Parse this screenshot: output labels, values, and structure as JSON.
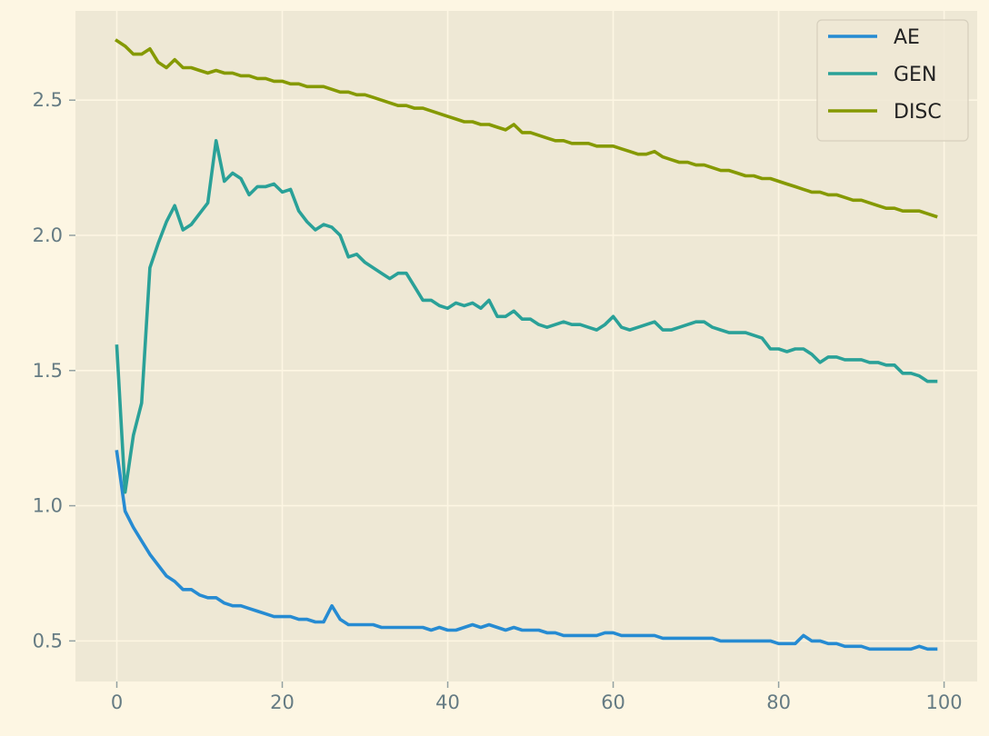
{
  "chart_data": {
    "type": "line",
    "title": "",
    "xlabel": "",
    "ylabel": "",
    "xlim": [
      -5,
      104
    ],
    "ylim": [
      0.35,
      2.83
    ],
    "x_ticks": [
      0,
      20,
      40,
      60,
      80,
      100
    ],
    "y_ticks": [
      0.5,
      1.0,
      1.5,
      2.0,
      2.5
    ],
    "x_tick_labels": [
      "0",
      "20",
      "40",
      "60",
      "80",
      "100"
    ],
    "y_tick_labels": [
      "0.5",
      "1.0",
      "1.5",
      "2.0",
      "2.5"
    ],
    "grid": true,
    "legend_position": "top-right",
    "x": [
      0,
      1,
      2,
      3,
      4,
      5,
      6,
      7,
      8,
      9,
      10,
      11,
      12,
      13,
      14,
      15,
      16,
      17,
      18,
      19,
      20,
      21,
      22,
      23,
      24,
      25,
      26,
      27,
      28,
      29,
      30,
      31,
      32,
      33,
      34,
      35,
      36,
      37,
      38,
      39,
      40,
      41,
      42,
      43,
      44,
      45,
      46,
      47,
      48,
      49,
      50,
      51,
      52,
      53,
      54,
      55,
      56,
      57,
      58,
      59,
      60,
      61,
      62,
      63,
      64,
      65,
      66,
      67,
      68,
      69,
      70,
      71,
      72,
      73,
      74,
      75,
      76,
      77,
      78,
      79,
      80,
      81,
      82,
      83,
      84,
      85,
      86,
      87,
      88,
      89,
      90,
      91,
      92,
      93,
      94,
      95,
      96,
      97,
      98,
      99
    ],
    "series": [
      {
        "name": "AE",
        "color": "#268bd2",
        "values": [
          1.2,
          0.98,
          0.92,
          0.87,
          0.82,
          0.78,
          0.74,
          0.72,
          0.69,
          0.69,
          0.67,
          0.66,
          0.66,
          0.64,
          0.63,
          0.63,
          0.62,
          0.61,
          0.6,
          0.59,
          0.59,
          0.59,
          0.58,
          0.58,
          0.57,
          0.57,
          0.63,
          0.58,
          0.56,
          0.56,
          0.56,
          0.56,
          0.55,
          0.55,
          0.55,
          0.55,
          0.55,
          0.55,
          0.54,
          0.55,
          0.54,
          0.54,
          0.55,
          0.56,
          0.55,
          0.56,
          0.55,
          0.54,
          0.55,
          0.54,
          0.54,
          0.54,
          0.53,
          0.53,
          0.52,
          0.52,
          0.52,
          0.52,
          0.52,
          0.53,
          0.53,
          0.52,
          0.52,
          0.52,
          0.52,
          0.52,
          0.51,
          0.51,
          0.51,
          0.51,
          0.51,
          0.51,
          0.51,
          0.5,
          0.5,
          0.5,
          0.5,
          0.5,
          0.5,
          0.5,
          0.49,
          0.49,
          0.49,
          0.52,
          0.5,
          0.5,
          0.49,
          0.49,
          0.48,
          0.48,
          0.48,
          0.47,
          0.47,
          0.47,
          0.47,
          0.47,
          0.47,
          0.48,
          0.47,
          0.47
        ]
      },
      {
        "name": "GEN",
        "color": "#2aa198",
        "values": [
          1.59,
          1.05,
          1.26,
          1.38,
          1.88,
          1.97,
          2.05,
          2.11,
          2.02,
          2.04,
          2.08,
          2.12,
          2.35,
          2.2,
          2.23,
          2.21,
          2.15,
          2.18,
          2.18,
          2.19,
          2.16,
          2.17,
          2.09,
          2.05,
          2.02,
          2.04,
          2.03,
          2.0,
          1.92,
          1.93,
          1.9,
          1.88,
          1.86,
          1.84,
          1.86,
          1.86,
          1.81,
          1.76,
          1.76,
          1.74,
          1.73,
          1.75,
          1.74,
          1.75,
          1.73,
          1.76,
          1.7,
          1.7,
          1.72,
          1.69,
          1.69,
          1.67,
          1.66,
          1.67,
          1.68,
          1.67,
          1.67,
          1.66,
          1.65,
          1.67,
          1.7,
          1.66,
          1.65,
          1.66,
          1.67,
          1.68,
          1.65,
          1.65,
          1.66,
          1.67,
          1.68,
          1.68,
          1.66,
          1.65,
          1.64,
          1.64,
          1.64,
          1.63,
          1.62,
          1.58,
          1.58,
          1.57,
          1.58,
          1.58,
          1.56,
          1.53,
          1.55,
          1.55,
          1.54,
          1.54,
          1.54,
          1.53,
          1.53,
          1.52,
          1.52,
          1.49,
          1.49,
          1.48,
          1.46,
          1.46
        ]
      },
      {
        "name": "DISC",
        "color": "#859900",
        "values": [
          2.72,
          2.7,
          2.67,
          2.67,
          2.69,
          2.64,
          2.62,
          2.65,
          2.62,
          2.62,
          2.61,
          2.6,
          2.61,
          2.6,
          2.6,
          2.59,
          2.59,
          2.58,
          2.58,
          2.57,
          2.57,
          2.56,
          2.56,
          2.55,
          2.55,
          2.55,
          2.54,
          2.53,
          2.53,
          2.52,
          2.52,
          2.51,
          2.5,
          2.49,
          2.48,
          2.48,
          2.47,
          2.47,
          2.46,
          2.45,
          2.44,
          2.43,
          2.42,
          2.42,
          2.41,
          2.41,
          2.4,
          2.39,
          2.41,
          2.38,
          2.38,
          2.37,
          2.36,
          2.35,
          2.35,
          2.34,
          2.34,
          2.34,
          2.33,
          2.33,
          2.33,
          2.32,
          2.31,
          2.3,
          2.3,
          2.31,
          2.29,
          2.28,
          2.27,
          2.27,
          2.26,
          2.26,
          2.25,
          2.24,
          2.24,
          2.23,
          2.22,
          2.22,
          2.21,
          2.21,
          2.2,
          2.19,
          2.18,
          2.17,
          2.16,
          2.16,
          2.15,
          2.15,
          2.14,
          2.13,
          2.13,
          2.12,
          2.11,
          2.1,
          2.1,
          2.09,
          2.09,
          2.09,
          2.08,
          2.07
        ]
      }
    ]
  }
}
